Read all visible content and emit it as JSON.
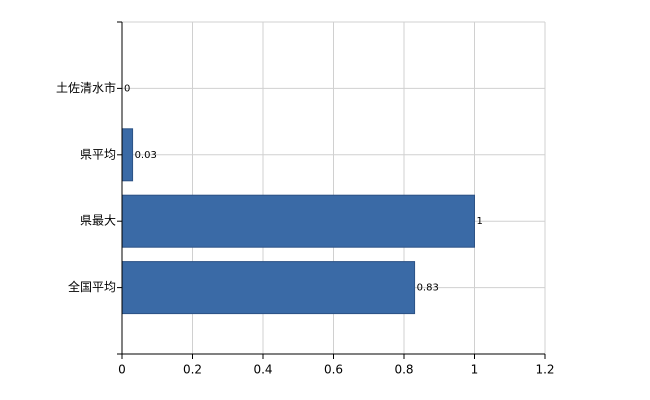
{
  "chart_data": {
    "type": "bar",
    "orientation": "horizontal",
    "categories": [
      "土佐清水市",
      "県平均",
      "県最大",
      "全国平均"
    ],
    "values": [
      0,
      0.03,
      1,
      0.83
    ],
    "color": "#3a6aa6",
    "xlim": [
      0,
      1.2
    ],
    "xticks": [
      0,
      0.2,
      0.4,
      0.6,
      0.8,
      1,
      1.2
    ],
    "grid": true
  }
}
